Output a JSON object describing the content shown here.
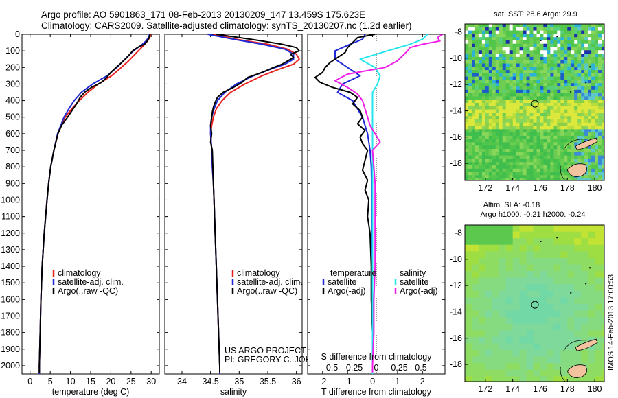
{
  "header": {
    "line1": "Argo profile: AO 5901863_171 08-Feb-2013 20130209_147 13.459S 175.623E",
    "line2": "Climatology: CARS2009. Satellite-adjusted climatology: synTS_20130207.nc (1.2d earlier)"
  },
  "colors": {
    "climatology": "#e8231f",
    "satellite": "#1e28d8",
    "argo": "#000000",
    "sal_satellite": "#22e6ee",
    "sal_argo": "#f01ee8"
  },
  "depth_axis": {
    "range": [
      0,
      2050
    ],
    "ticks": [
      0,
      100,
      200,
      300,
      400,
      500,
      600,
      700,
      800,
      900,
      1000,
      1100,
      1200,
      1300,
      1400,
      1500,
      1600,
      1700,
      1800,
      1900,
      2000
    ]
  },
  "chart_data": [
    {
      "type": "line",
      "name": "temperature-profile",
      "xlabel": "temperature (deg C)",
      "ylabel": "",
      "xlim": [
        -2,
        32
      ],
      "xticks": [
        0,
        5,
        10,
        15,
        20,
        25,
        30
      ],
      "ylim": [
        2050,
        0
      ],
      "legend": {
        "placement": "lower-middle",
        "entries": [
          "climatology",
          "satellite-adj. clim.",
          "Argo(..raw -QC)"
        ]
      },
      "series": [
        {
          "name": "climatology",
          "color_key": "climatology",
          "depth": [
            0,
            20,
            40,
            60,
            80,
            100,
            130,
            160,
            200,
            250,
            300,
            350,
            400,
            450,
            500,
            600,
            700,
            800,
            900,
            1000,
            1200,
            1400,
            1600,
            1800,
            2000,
            2050
          ],
          "values": [
            29.9,
            29.6,
            29.1,
            28.4,
            27.6,
            26.8,
            25.6,
            24.4,
            22.6,
            20.2,
            16.9,
            14.3,
            12.2,
            10.3,
            8.7,
            6.9,
            5.9,
            5.1,
            4.6,
            4.2,
            3.5,
            3.0,
            2.7,
            2.5,
            2.3,
            2.3
          ]
        },
        {
          "name": "satellite-adj. clim.",
          "color_key": "satellite",
          "depth": [
            0,
            20,
            40,
            60,
            80,
            100,
            130,
            160,
            200,
            250,
            300,
            350,
            400,
            450,
            500,
            600,
            700,
            800,
            900,
            1000,
            1200,
            1400,
            1600,
            1800,
            2000,
            2050
          ],
          "values": [
            29.6,
            29.3,
            28.7,
            27.8,
            26.7,
            25.6,
            24.3,
            23.1,
            21.5,
            19.1,
            15.5,
            12.7,
            10.9,
            9.6,
            8.4,
            6.8,
            5.9,
            5.1,
            4.6,
            4.2,
            3.5,
            3.0,
            2.7,
            2.5,
            2.3,
            2.3
          ]
        },
        {
          "name": "Argo(..raw -QC)",
          "color_key": "argo",
          "depth": [
            0,
            20,
            40,
            60,
            80,
            100,
            120,
            140,
            170,
            200,
            230,
            260,
            290,
            320,
            350,
            380,
            420,
            460,
            500,
            550,
            600,
            700,
            800,
            900,
            1000,
            1200,
            1400,
            1600,
            1800,
            2000,
            2045
          ],
          "values": [
            29.7,
            29.5,
            29.0,
            28.3,
            26.6,
            25.4,
            24.7,
            24.0,
            22.7,
            21.3,
            20.0,
            19.0,
            17.7,
            15.2,
            13.5,
            12.4,
            11.5,
            10.4,
            9.3,
            7.8,
            6.9,
            5.9,
            5.1,
            4.6,
            4.2,
            3.5,
            3.0,
            2.7,
            2.5,
            2.3,
            2.3
          ]
        }
      ]
    },
    {
      "type": "line",
      "name": "salinity-profile",
      "xlabel": "salinity",
      "ylabel": "",
      "xlim": [
        33.7,
        36.1
      ],
      "xticks": [
        34,
        34.5,
        35,
        35.5,
        36
      ],
      "ylim": [
        2050,
        0
      ],
      "legend": {
        "placement": "lower-middle",
        "entries": [
          "climatology",
          "satellite-adj. clim.",
          "Argo(..raw -QC)"
        ]
      },
      "annotation": {
        "line1": "US ARGO PROJECT",
        "line2": "PI: GREGORY C. JOHNSON"
      },
      "series": [
        {
          "name": "climatology",
          "color_key": "climatology",
          "depth": [
            0,
            30,
            60,
            90,
            120,
            150,
            180,
            210,
            250,
            300,
            350,
            400,
            450,
            500,
            550,
            600,
            650,
            700,
            800,
            900,
            1000,
            1200,
            1400,
            1600,
            1800,
            2000,
            2050
          ],
          "values": [
            34.55,
            34.95,
            35.5,
            35.85,
            36.0,
            36.05,
            35.95,
            35.7,
            35.4,
            35.1,
            34.85,
            34.7,
            34.6,
            34.55,
            34.52,
            34.5,
            34.51,
            34.52,
            34.53,
            34.55,
            34.56,
            34.58,
            34.6,
            34.62,
            34.64,
            34.66,
            34.66
          ]
        },
        {
          "name": "satellite-adj. clim.",
          "color_key": "satellite",
          "depth": [
            0,
            30,
            60,
            90,
            120,
            150,
            180,
            210,
            250,
            300,
            350,
            400,
            450,
            500,
            550,
            600,
            650,
            700,
            800,
            900,
            1000,
            1200,
            1400,
            1600,
            1800,
            2000,
            2050
          ],
          "values": [
            34.45,
            34.9,
            35.4,
            35.8,
            35.95,
            35.95,
            35.8,
            35.55,
            35.25,
            34.95,
            34.75,
            34.62,
            34.56,
            34.52,
            34.5,
            34.5,
            34.51,
            34.52,
            34.53,
            34.55,
            34.56,
            34.58,
            34.6,
            34.62,
            34.64,
            34.66,
            34.66
          ]
        },
        {
          "name": "Argo(..raw -QC)",
          "color_key": "argo",
          "depth": [
            0,
            20,
            40,
            60,
            80,
            100,
            120,
            140,
            160,
            180,
            200,
            230,
            260,
            290,
            320,
            350,
            380,
            410,
            440,
            470,
            500,
            550,
            600,
            650,
            700,
            800,
            900,
            1000,
            1200,
            1400,
            1600,
            1800,
            2000,
            2040
          ],
          "values": [
            34.6,
            35.0,
            35.4,
            35.75,
            36.0,
            36.05,
            35.9,
            35.95,
            35.85,
            35.75,
            35.6,
            35.4,
            35.15,
            35.05,
            34.9,
            34.72,
            34.62,
            34.58,
            34.55,
            34.53,
            34.52,
            34.5,
            34.52,
            34.5,
            34.53,
            34.54,
            34.55,
            34.56,
            34.58,
            34.6,
            34.62,
            34.64,
            34.66,
            34.66
          ]
        }
      ]
    },
    {
      "type": "line",
      "name": "difference-profile",
      "xlabel": "T difference from climatology",
      "xlabel_top": "S difference from climatology",
      "xlim": [
        -2.6,
        2.9
      ],
      "xticks": [
        -2,
        -1,
        0,
        1,
        2
      ],
      "s_xticks": [
        "-0.5",
        "-0.25",
        "0",
        "0.25",
        "0.5"
      ],
      "ylim": [
        2050,
        0
      ],
      "legend": {
        "placement": "lower-middle",
        "temperature_header": "temperature",
        "salinity_header": "salinity",
        "entries": [
          "satellite",
          "Argo(-adj)",
          "satellite",
          "Argo(-adj)"
        ]
      },
      "series": [
        {
          "name": "T satellite",
          "color_key": "satellite",
          "depth": [
            0,
            30,
            60,
            100,
            150,
            200,
            250,
            300,
            350,
            400,
            450,
            500,
            550,
            600,
            700,
            800,
            900,
            1000,
            1200,
            1400,
            1600,
            1800,
            2000,
            2050
          ],
          "values": [
            -0.3,
            -0.4,
            -0.9,
            -1.5,
            -1.5,
            -1.0,
            -0.5,
            -1.2,
            -1.4,
            -0.8,
            -0.6,
            -0.4,
            -0.3,
            -0.2,
            -0.1,
            -0.05,
            -0.04,
            -0.03,
            -0.02,
            -0.01,
            0,
            0,
            0,
            0
          ]
        },
        {
          "name": "T Argo(-adj)",
          "color_key": "argo",
          "depth": [
            0,
            20,
            50,
            80,
            110,
            140,
            170,
            200,
            230,
            260,
            290,
            320,
            350,
            380,
            420,
            460,
            500,
            540,
            580,
            620,
            660,
            700,
            760,
            820,
            880,
            940,
            1000,
            1100,
            1200,
            1400,
            1600,
            1800,
            2000,
            2040
          ],
          "values": [
            0.1,
            -0.6,
            -0.8,
            -1.0,
            -1.1,
            -1.4,
            -1.7,
            -1.9,
            -2.0,
            -2.3,
            -2.1,
            -1.6,
            -0.9,
            -0.6,
            -0.8,
            -0.5,
            -0.4,
            -0.6,
            -0.3,
            -0.5,
            -0.4,
            -0.2,
            -0.3,
            -0.4,
            -0.2,
            -0.3,
            -0.15,
            -0.2,
            -0.1,
            -0.05,
            -0.05,
            0,
            0,
            0
          ]
        },
        {
          "name": "S satellite",
          "color_key": "sal_satellite",
          "depth": [
            0,
            30,
            60,
            100,
            150,
            200,
            250,
            300,
            350,
            400,
            450,
            500,
            550,
            600,
            700,
            800,
            900,
            1000,
            1200,
            1400,
            1600,
            1800,
            2000,
            2050
          ],
          "values": [
            2.2,
            2.0,
            1.5,
            0.6,
            -0.5,
            0.1,
            0.3,
            0.2,
            0.0,
            0.0,
            0.0,
            0.0,
            0.0,
            0.0,
            0.0,
            0.0,
            0.0,
            0.0,
            0.0,
            0.0,
            0.0,
            0.0,
            0.0,
            0.0
          ]
        },
        {
          "name": "S Argo(-adj)",
          "color_key": "sal_argo",
          "depth": [
            0,
            20,
            40,
            60,
            80,
            100,
            130,
            160,
            200,
            240,
            280,
            320,
            360,
            400,
            450,
            500,
            550,
            600,
            650,
            700,
            800,
            900,
            1000,
            1200,
            1400,
            1600,
            1800,
            2000,
            2040
          ],
          "values": [
            2.8,
            2.6,
            2.7,
            2.0,
            1.5,
            1.4,
            1.2,
            1.0,
            0.5,
            -1.0,
            -1.5,
            -1.0,
            -0.6,
            -0.4,
            -0.3,
            -0.2,
            -0.1,
            0.1,
            0.3,
            0.0,
            0.05,
            0.1,
            0.1,
            0.1,
            0.1,
            0.05,
            0.05,
            0.0,
            0.0
          ]
        }
      ]
    },
    {
      "type": "heatmap",
      "name": "sst-map",
      "title": "sat. SST: 28.6 Argo: 29.9",
      "xticks": [
        172,
        174,
        176,
        178,
        180
      ],
      "yticks": [
        -8,
        -10,
        -12,
        -14,
        -16,
        -18
      ],
      "xlim": [
        170.5,
        180.7
      ],
      "ylim": [
        -19.3,
        -7.4
      ],
      "argo_position": {
        "lon": 175.623,
        "lat": -13.459
      }
    },
    {
      "type": "heatmap",
      "name": "sla-map",
      "title_line1": "Altim. SLA: -0.18",
      "title_line2": "Argo h1000: -0.21 h2000: -0.24",
      "xticks": [
        172,
        174,
        176,
        178,
        180
      ],
      "yticks": [
        -8,
        -10,
        -12,
        -14,
        -16,
        -18
      ],
      "xlim": [
        170.5,
        180.7
      ],
      "ylim": [
        -19.3,
        -7.4
      ],
      "argo_position": {
        "lon": 175.623,
        "lat": -13.459
      }
    }
  ],
  "footer": {
    "credit": "IMOS 14-Feb-2013 17:00:53"
  }
}
